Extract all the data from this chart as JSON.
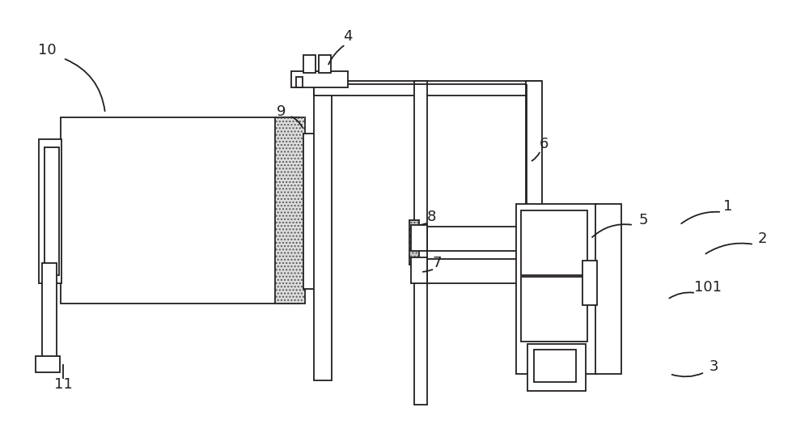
{
  "bg_color": "#ffffff",
  "line_color": "#231f20",
  "hatch_color": "#555555",
  "label_color": "#231f20",
  "figsize": [
    10.0,
    5.35
  ],
  "dpi": 100
}
